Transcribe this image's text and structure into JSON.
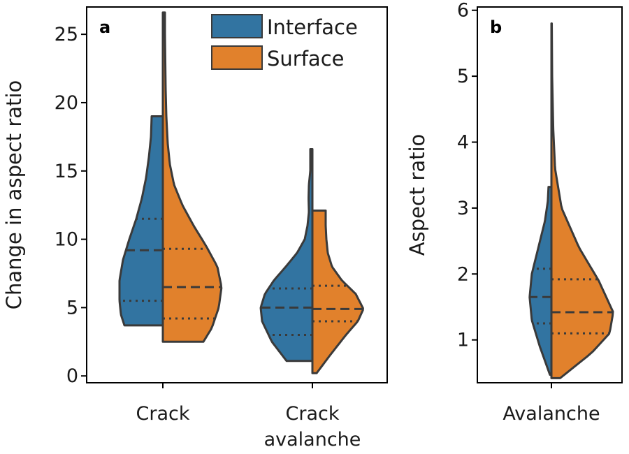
{
  "colors": {
    "interface": "#3274a1",
    "surface": "#e1812c"
  },
  "chart_data": [
    {
      "panel": "a",
      "type": "split-violin",
      "xlabel": "",
      "ylabel": "Change in aspect ratio",
      "ylim": [
        -0.5,
        27
      ],
      "yticks": [
        0,
        5,
        10,
        15,
        20,
        25
      ],
      "categories": [
        [
          "Crack"
        ],
        [
          "Crack",
          "avalanche"
        ]
      ],
      "legend": {
        "placement": "top-right",
        "entries": [
          "Interface",
          "Surface"
        ]
      },
      "groups": [
        {
          "category": "Crack",
          "interface": {
            "min": 3.7,
            "max": 19.0,
            "q1": 5.5,
            "median": 9.2,
            "q3": 11.5,
            "density": [
              [
                3.7,
                0.55
              ],
              [
                4.5,
                0.6
              ],
              [
                5.5,
                0.62
              ],
              [
                7,
                0.62
              ],
              [
                8.5,
                0.57
              ],
              [
                10,
                0.48
              ],
              [
                11.5,
                0.38
              ],
              [
                13,
                0.3
              ],
              [
                14.5,
                0.24
              ],
              [
                16,
                0.2
              ],
              [
                17.5,
                0.17
              ],
              [
                19,
                0.16
              ]
            ]
          },
          "surface": {
            "min": 2.5,
            "max": 26.6,
            "q1": 4.2,
            "median": 6.5,
            "q3": 9.3,
            "density": [
              [
                2.5,
                0.58
              ],
              [
                3.5,
                0.7
              ],
              [
                5,
                0.8
              ],
              [
                6.5,
                0.84
              ],
              [
                8,
                0.78
              ],
              [
                9.5,
                0.62
              ],
              [
                11,
                0.44
              ],
              [
                12.5,
                0.28
              ],
              [
                14,
                0.16
              ],
              [
                15.5,
                0.1
              ],
              [
                17,
                0.07
              ],
              [
                19,
                0.05
              ],
              [
                21,
                0.04
              ],
              [
                23,
                0.035
              ],
              [
                25,
                0.03
              ],
              [
                26.6,
                0.03
              ]
            ]
          }
        },
        {
          "category": "Crack avalanche",
          "interface": {
            "min": 1.1,
            "max": 16.6,
            "q1": 3.0,
            "median": 5.0,
            "q3": 6.4,
            "density": [
              [
                1.1,
                0.37
              ],
              [
                2.5,
                0.58
              ],
              [
                4,
                0.72
              ],
              [
                5,
                0.74
              ],
              [
                6,
                0.68
              ],
              [
                7,
                0.55
              ],
              [
                8,
                0.38
              ],
              [
                9,
                0.22
              ],
              [
                10,
                0.11
              ],
              [
                11,
                0.07
              ],
              [
                12,
                0.05
              ],
              [
                13,
                0.055
              ],
              [
                14,
                0.05
              ],
              [
                15,
                0.03
              ],
              [
                16.6,
                0.03
              ]
            ]
          },
          "surface": {
            "min": 0.2,
            "max": 12.1,
            "q1": 4.0,
            "median": 4.9,
            "q3": 6.6,
            "density": [
              [
                0.2,
                0.06
              ],
              [
                1.5,
                0.25
              ],
              [
                3,
                0.48
              ],
              [
                4,
                0.65
              ],
              [
                4.9,
                0.73
              ],
              [
                6,
                0.62
              ],
              [
                7,
                0.42
              ],
              [
                8,
                0.28
              ],
              [
                9,
                0.22
              ],
              [
                10,
                0.2
              ],
              [
                11,
                0.19
              ],
              [
                12.1,
                0.19
              ]
            ]
          }
        }
      ]
    },
    {
      "panel": "b",
      "type": "split-violin",
      "xlabel": "",
      "ylabel": "Aspect ratio",
      "ylim": [
        0.35,
        6.05
      ],
      "yticks": [
        1,
        2,
        3,
        4,
        5,
        6
      ],
      "categories": [
        [
          "Avalanche"
        ]
      ],
      "groups": [
        {
          "category": "Avalanche",
          "interface": {
            "min": 0.47,
            "max": 3.32,
            "q1": 1.25,
            "median": 1.65,
            "q3": 2.08,
            "density": [
              [
                0.47,
                0.02
              ],
              [
                0.9,
                0.16
              ],
              [
                1.3,
                0.27
              ],
              [
                1.65,
                0.3
              ],
              [
                2.0,
                0.27
              ],
              [
                2.4,
                0.18
              ],
              [
                2.8,
                0.09
              ],
              [
                3.1,
                0.05
              ],
              [
                3.32,
                0.04
              ]
            ]
          },
          "surface": {
            "min": 0.42,
            "max": 5.8,
            "q1": 1.1,
            "median": 1.42,
            "q3": 1.92,
            "density": [
              [
                0.42,
                0.12
              ],
              [
                0.8,
                0.55
              ],
              [
                1.1,
                0.8
              ],
              [
                1.42,
                0.85
              ],
              [
                1.9,
                0.65
              ],
              [
                2.4,
                0.38
              ],
              [
                3.0,
                0.14
              ],
              [
                3.6,
                0.05
              ],
              [
                4.2,
                0.025
              ],
              [
                5.0,
                0.01
              ],
              [
                5.8,
                0.005
              ]
            ]
          }
        }
      ]
    }
  ]
}
